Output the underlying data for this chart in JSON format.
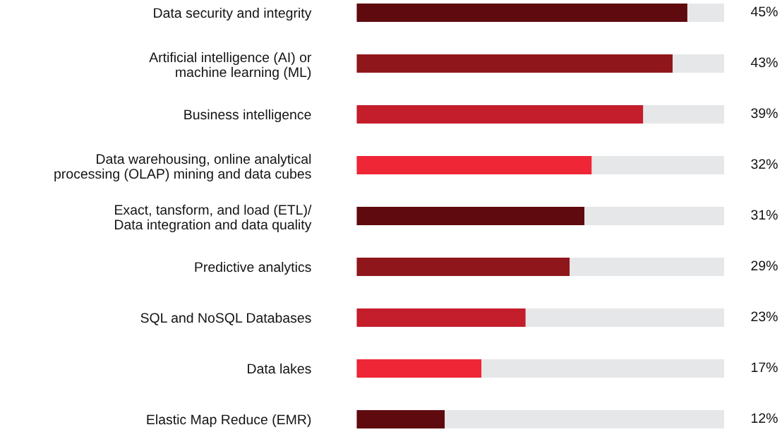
{
  "chart_data": {
    "type": "bar",
    "orientation": "horizontal",
    "stacked": true,
    "xlim": [
      0,
      50
    ],
    "tick_labels": "y",
    "grid": false,
    "legend": false,
    "categories": [
      "Data security and integrity",
      "Artificial intelligence (AI) or\nmachine learning (ML)",
      "Business intelligence",
      "Data warehousing, online analytical\nprocessing (OLAP) mining and data cubes",
      "Exact, tansform, and load (ETL)/\nData integration and data quality",
      "Predictive analytics",
      "SQL and NoSQL Databases",
      "Data lakes",
      "Elastic Map Reduce (EMR)"
    ],
    "series": [
      {
        "colors": [
          "#5e0a0e",
          "#8f171c",
          "#c41d2b",
          "#ee2636",
          "#5e0a0e",
          "#8f171c",
          "#c41d2b",
          "#ee2636",
          "#5e0a0e"
        ],
        "values": [
          45,
          43,
          39,
          32,
          31,
          29,
          23,
          17,
          12
        ],
        "value_labels": [
          "45%",
          "43%",
          "39%",
          "32%",
          "31%",
          "29%",
          "23%",
          "17%",
          "12%"
        ]
      },
      {
        "color": "#e6e7e8",
        "values": [
          5,
          7,
          11,
          18,
          19,
          21,
          27,
          33,
          38
        ]
      }
    ]
  }
}
